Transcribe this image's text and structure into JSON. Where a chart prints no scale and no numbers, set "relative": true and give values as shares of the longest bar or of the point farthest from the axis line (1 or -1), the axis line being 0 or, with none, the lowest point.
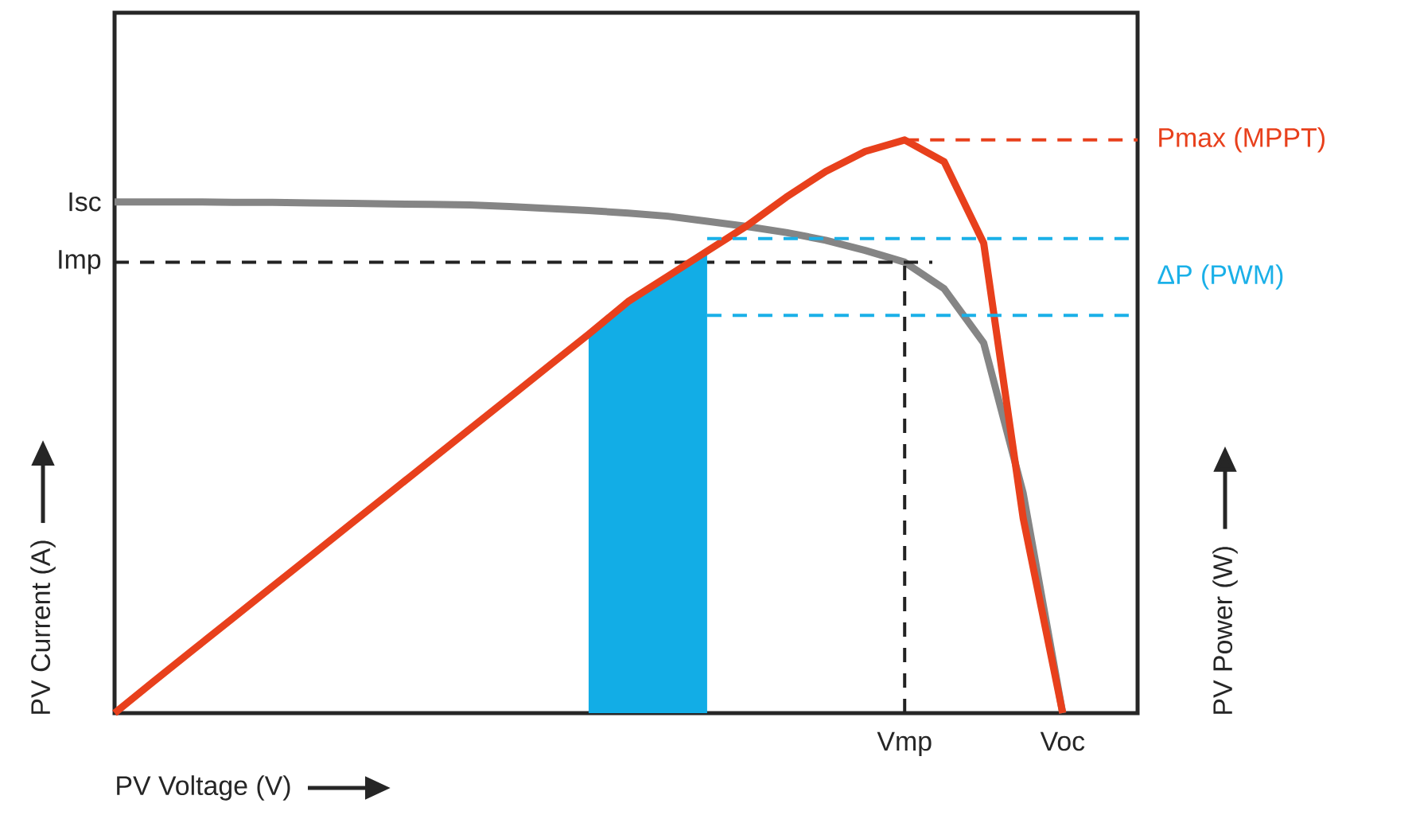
{
  "chart_data": {
    "type": "line",
    "relative": true,
    "xlabel": "PV Voltage (V)",
    "ylabel": "PV Current (A)",
    "y2label": "PV Power (W)",
    "categories": [
      null,
      null,
      null,
      null,
      null,
      null,
      null,
      null,
      null,
      null,
      null,
      null,
      null,
      null,
      null,
      null,
      null,
      null,
      null,
      null,
      "Vmp",
      null,
      null,
      null,
      "Voc"
    ],
    "series": [
      {
        "color": "#858585",
        "values": [
          1.0,
          1.0,
          1.0,
          0.999,
          0.999,
          0.998,
          0.997,
          0.996,
          0.995,
          0.994,
          0.991,
          0.987,
          0.983,
          0.978,
          0.972,
          0.962,
          0.952,
          0.94,
          0.925,
          0.905,
          0.882,
          0.83,
          0.724,
          0.43,
          0
        ]
      },
      {
        "type": "area",
        "axis": "y2",
        "color": "#12ade6",
        "values": [
          null,
          null,
          null,
          null,
          null,
          null,
          null,
          null,
          null,
          null,
          null,
          null,
          0.661,
          0.718,
          0.762,
          0.806,
          null,
          null,
          null,
          null,
          null,
          null,
          null,
          null,
          null
        ]
      },
      {
        "axis": "y2",
        "color": "#e8401c",
        "values": [
          0,
          0.056,
          0.111,
          0.166,
          0.221,
          0.276,
          0.331,
          0.386,
          0.441,
          0.496,
          0.551,
          0.606,
          0.661,
          0.718,
          0.762,
          0.806,
          0.85,
          0.9,
          0.945,
          0.98,
          1.0,
          0.962,
          0.82,
          0.34,
          0
        ]
      }
    ],
    "ref_lines": [
      {
        "axis": "y",
        "value": 0.882,
        "label": "Imp",
        "color": "#222222",
        "line_style": "dashed"
      },
      {
        "axis": "x",
        "value": "Vmp",
        "color": "#222222",
        "line_style": "dashed"
      },
      {
        "axis": "y2",
        "value": 1.0,
        "label": "Pmax (MPPT)",
        "color": "#e8401c",
        "line_style": "dashed"
      },
      {
        "axis": "y2",
        "value": 0.828,
        "color": "#1ab0e8",
        "line_style": "dashed"
      },
      {
        "axis": "y2",
        "value": 0.694,
        "color": "#1ab0e8",
        "line_style": "dashed"
      }
    ],
    "annotations": [
      "Isc",
      "ΔP (PWM)"
    ]
  }
}
